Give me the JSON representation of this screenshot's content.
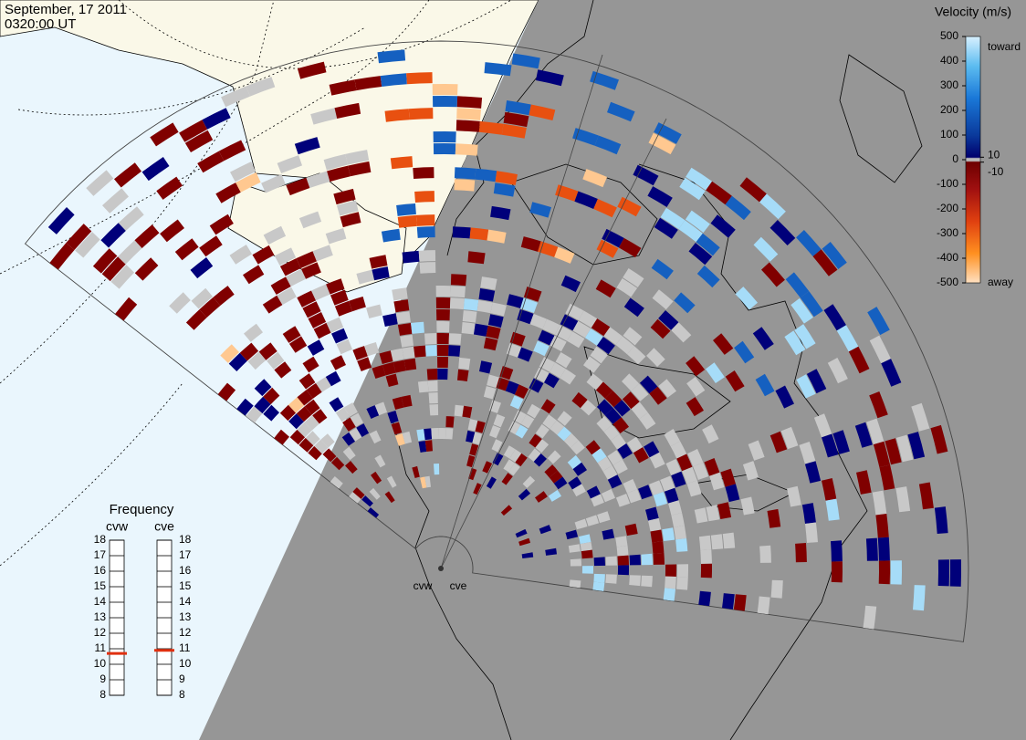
{
  "header": {
    "date": "September, 17 2011",
    "time": "0320:00 UT"
  },
  "colorbar": {
    "title": "Velocity (m/s)",
    "range": [
      -500,
      500
    ],
    "ticks": [
      500,
      400,
      300,
      200,
      100,
      0,
      -100,
      -200,
      -300,
      -400,
      -500
    ],
    "inner_ticks": [
      10,
      -10
    ],
    "end_labels": [
      "toward",
      "away"
    ]
  },
  "frequency": {
    "title": "Frequency",
    "range": [
      8,
      18
    ],
    "ticks": [
      8,
      9,
      10,
      11,
      12,
      13,
      14,
      15,
      16,
      17,
      18
    ],
    "radars": [
      {
        "name": "cvw",
        "value": 10.7
      },
      {
        "name": "cve",
        "value": 10.9
      }
    ]
  },
  "sites": [
    "cvw",
    "cve"
  ]
}
